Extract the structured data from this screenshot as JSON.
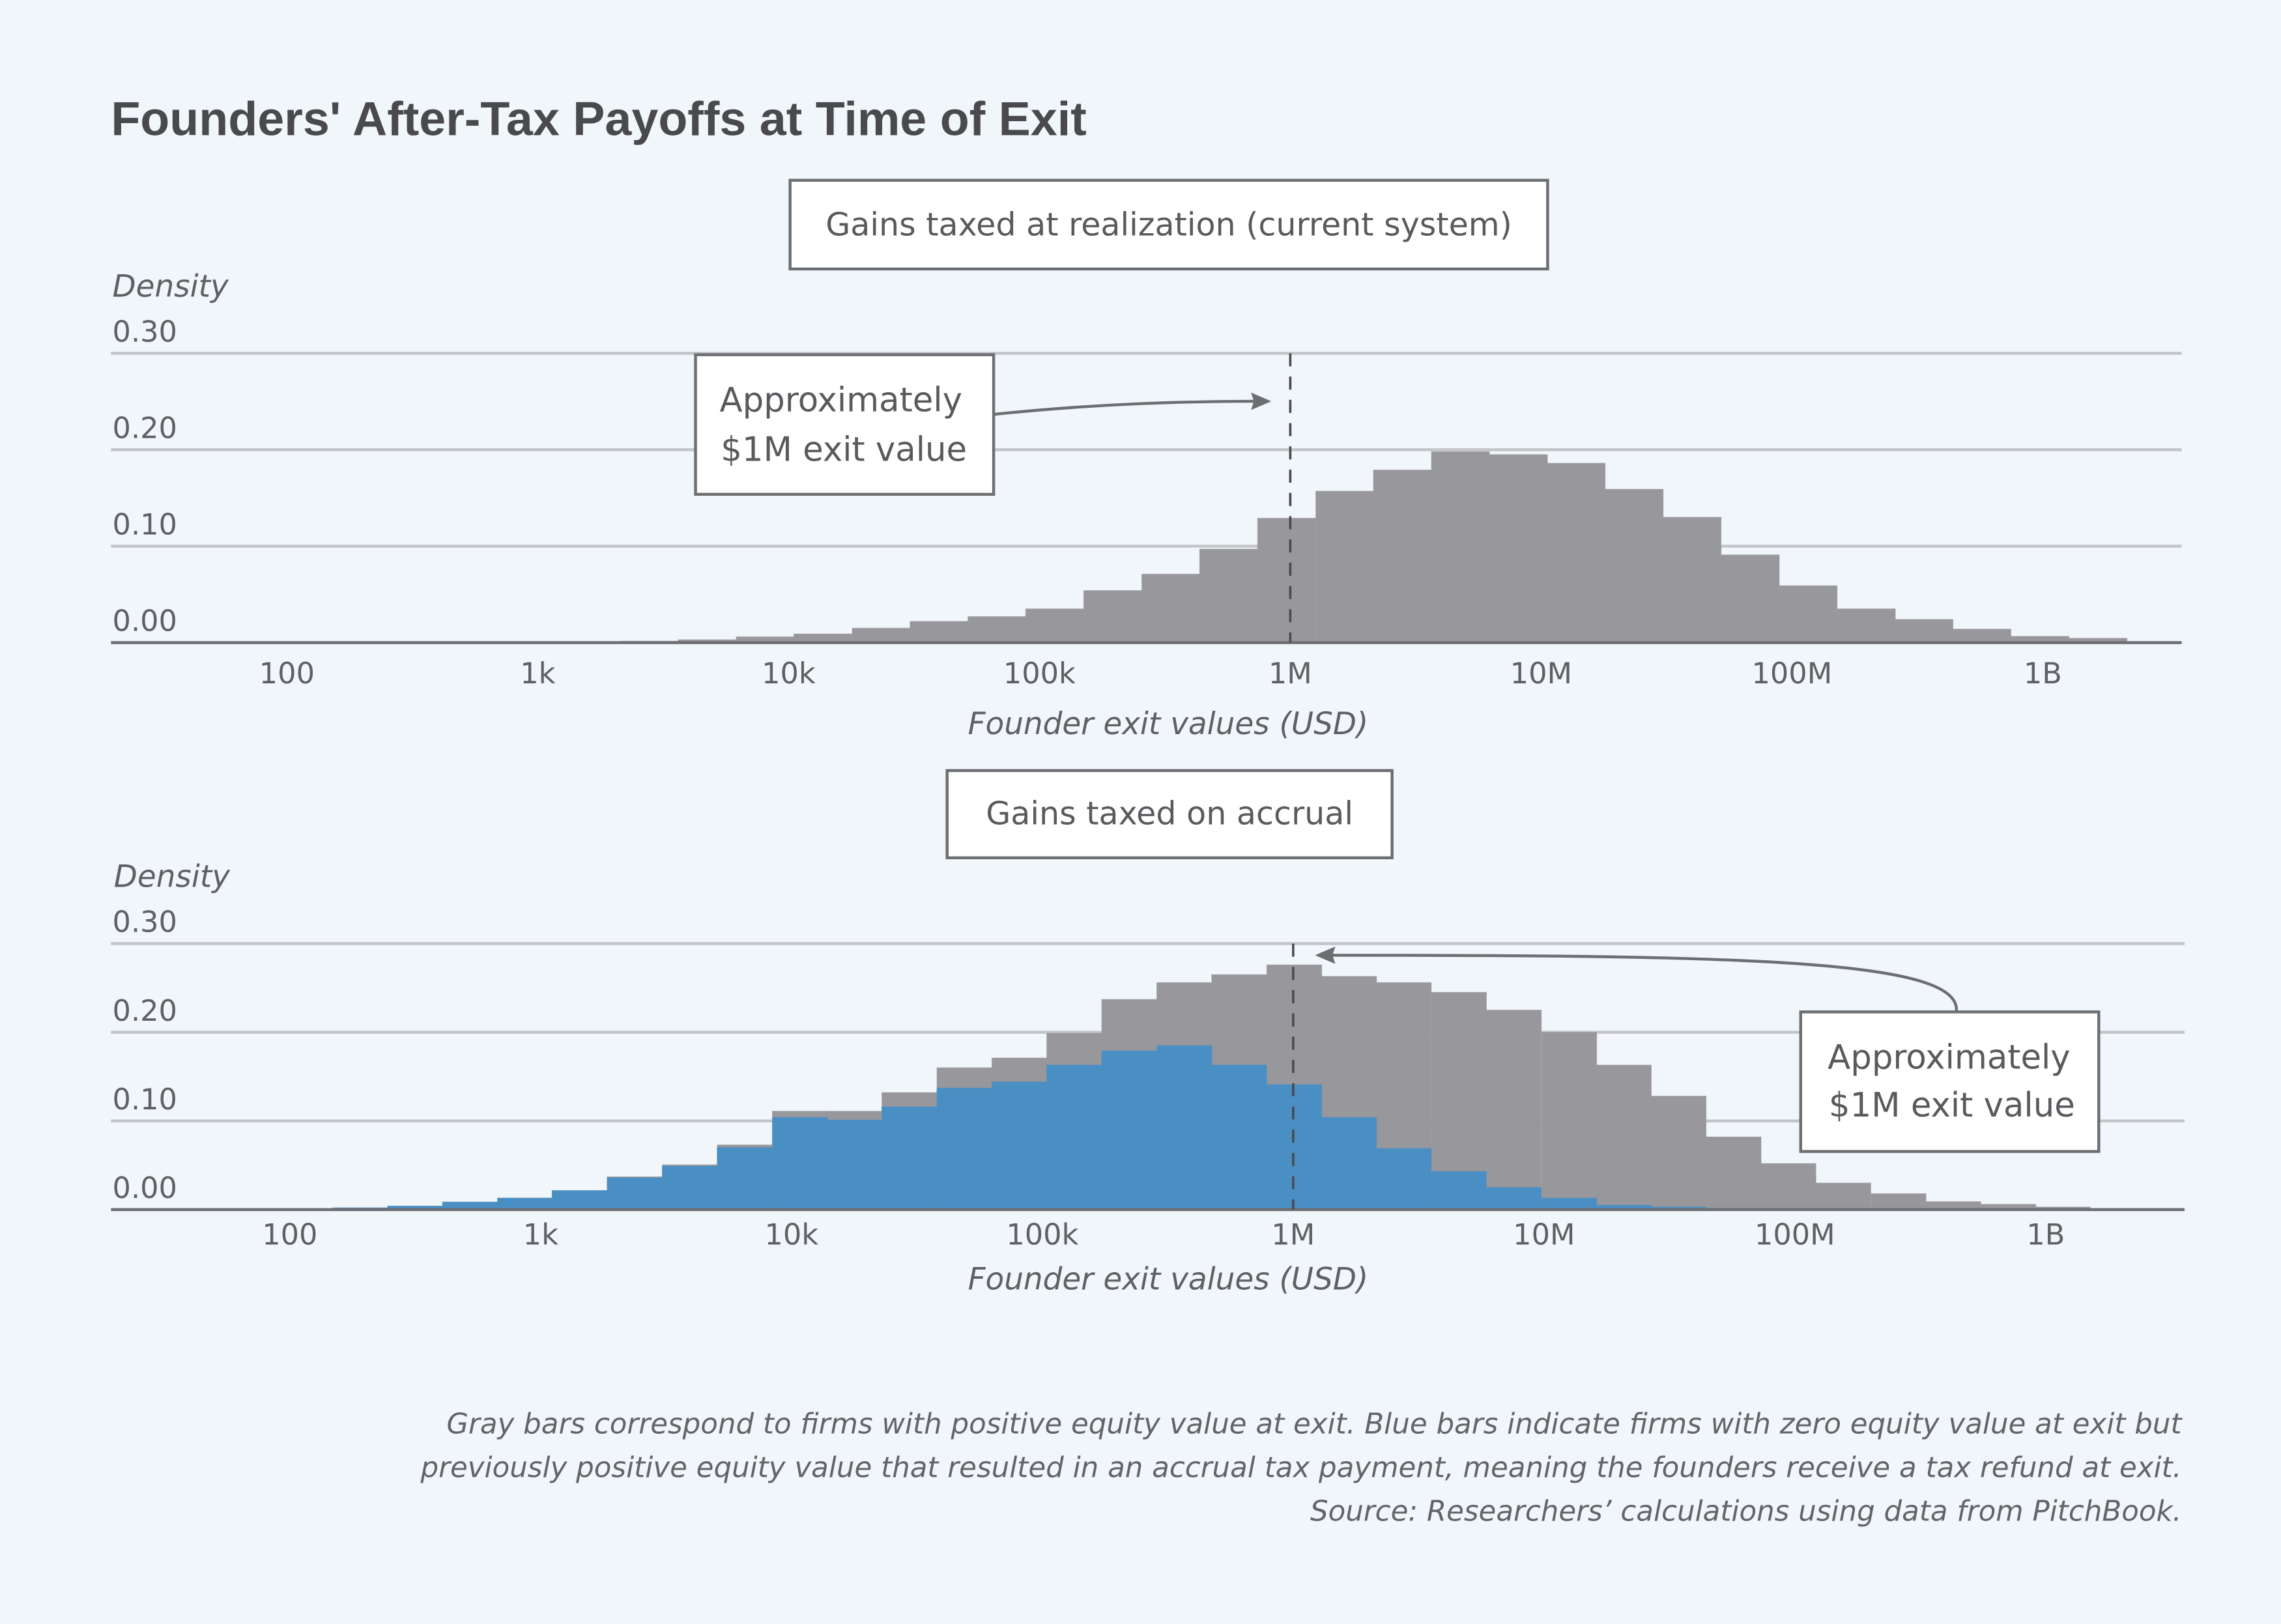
{
  "title": "Founders' After-Tax Payoffs at Time of Exit",
  "colors": {
    "background": "#f1f6fa",
    "gray_bars": "#98979b",
    "blue_bars": "#4a8fc4",
    "text": "#5a5a5e"
  },
  "chart_data": [
    {
      "type": "bar",
      "subtype": "histogram",
      "panel_label": "Gains taxed at realization (current system)",
      "ylabel": "Density",
      "xlabel": "Founder exit values (USD)",
      "x_scale": "log",
      "y_ticks": [
        "0.00",
        "0.10",
        "0.20",
        "0.30"
      ],
      "ylim": [
        0,
        0.3
      ],
      "x_ticks": [
        {
          "value": 100,
          "label": "100"
        },
        {
          "value": 1000,
          "label": "1k"
        },
        {
          "value": 10000,
          "label": "10k"
        },
        {
          "value": 100000,
          "label": "100k"
        },
        {
          "value": 1000000,
          "label": "1M"
        },
        {
          "value": 10000000,
          "label": "10M"
        },
        {
          "value": 100000000,
          "label": "100M"
        },
        {
          "value": 1000000000,
          "label": "1B"
        }
      ],
      "grid": true,
      "reference_line": {
        "x": 1000000,
        "style": "dashed"
      },
      "annotation": {
        "lines": [
          "Approximately",
          "$1M exit value"
        ]
      },
      "series": [
        {
          "color": "#98979b",
          "x": [
            2780,
            4740,
            8070,
            13700,
            23400,
            39800,
            67700,
            115000,
            196000,
            334000,
            568000,
            967000,
            1650000,
            2800000,
            4770000,
            8120000,
            13800000,
            23500000,
            40000000,
            68200000,
            116000000,
            198000000,
            336000000,
            572000000,
            974000000,
            1660000000
          ],
          "values": [
            0.0015,
            0.003,
            0.006,
            0.009,
            0.015,
            0.022,
            0.027,
            0.035,
            0.054,
            0.071,
            0.097,
            0.129,
            0.157,
            0.179,
            0.198,
            0.195,
            0.186,
            0.159,
            0.13,
            0.091,
            0.059,
            0.035,
            0.024,
            0.014,
            0.0065,
            0.0045
          ]
        }
      ]
    },
    {
      "type": "bar",
      "subtype": "histogram",
      "panel_label": "Gains taxed on accrual",
      "ylabel": "Density",
      "xlabel": "Founder exit values (USD)",
      "x_scale": "log",
      "y_ticks": [
        "0.00",
        "0.10",
        "0.20",
        "0.30"
      ],
      "ylim": [
        0,
        0.3
      ],
      "x_ticks": [
        {
          "value": 100,
          "label": "100"
        },
        {
          "value": 1000,
          "label": "1k"
        },
        {
          "value": 10000,
          "label": "10k"
        },
        {
          "value": 100000,
          "label": "100k"
        },
        {
          "value": 1000000,
          "label": "1M"
        },
        {
          "value": 10000000,
          "label": "10M"
        },
        {
          "value": 100000000,
          "label": "100M"
        },
        {
          "value": 1000000000,
          "label": "1B"
        }
      ],
      "grid": true,
      "reference_line": {
        "x": 1000000,
        "style": "dashed"
      },
      "annotation": {
        "lines": [
          "Approximately",
          "$1M exit value"
        ]
      },
      "x": [
        191,
        316,
        523,
        866,
        1430,
        2370,
        3930,
        6510,
        10800,
        17800,
        29500,
        48900,
        81000,
        134000,
        222000,
        368000,
        609000,
        1010000,
        1670000,
        2760000,
        4580000,
        7580000,
        12600000,
        20800000,
        34400000,
        57000000,
        94300000,
        156000000,
        259000000,
        428000000,
        709000000,
        1170000000
      ],
      "series": [
        {
          "color": "#98979b",
          "values": [
            0.002,
            0.004,
            0.0085,
            0.013,
            0.0215,
            0.037,
            0.0506,
            0.073,
            0.111,
            0.111,
            0.132,
            0.16,
            0.171,
            0.199,
            0.237,
            0.256,
            0.265,
            0.276,
            0.263,
            0.256,
            0.245,
            0.225,
            0.2,
            0.163,
            0.128,
            0.082,
            0.052,
            0.03,
            0.018,
            0.009,
            0.006,
            0.003
          ]
        },
        {
          "color": "#4a8fc4",
          "values": [
            0.002,
            0.004,
            0.0085,
            0.013,
            0.0215,
            0.036,
            0.049,
            0.07,
            0.104,
            0.101,
            0.116,
            0.137,
            0.144,
            0.163,
            0.179,
            0.185,
            0.163,
            0.141,
            0.104,
            0.069,
            0.043,
            0.025,
            0.013,
            0.005,
            0.003,
            0.001,
            0,
            0,
            0,
            0,
            0,
            0
          ]
        }
      ]
    }
  ],
  "footnote": [
    "Gray bars correspond to firms with positive equity value at exit. Blue bars indicate firms with zero equity value at exit but",
    "previously positive equity value that resulted in an accrual tax payment, meaning the founders receive a tax refund at exit.",
    "Source: Researchers’ calculations using data from PitchBook."
  ]
}
